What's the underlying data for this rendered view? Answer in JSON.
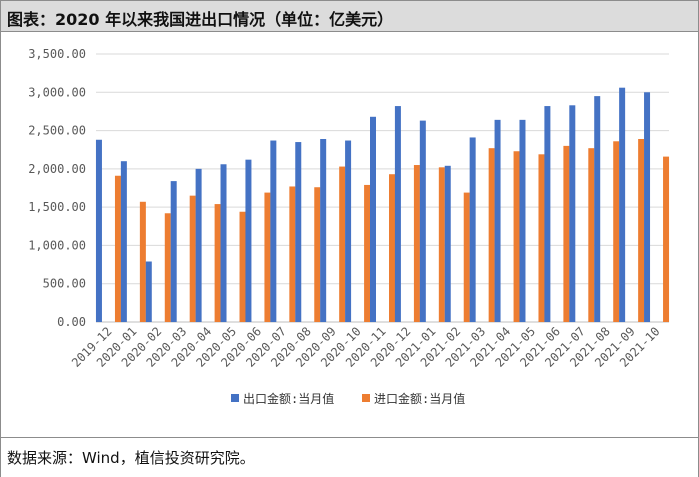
{
  "title": "图表：2020 年以来我国进出口情况（单位：亿美元）",
  "source": "数据来源：Wind，植信投资研究院。",
  "colors": {
    "export": "#4472c4",
    "import": "#ed7d31",
    "grid": "#d9d9d9",
    "axis_text": "#595959"
  },
  "chart_data": {
    "type": "bar",
    "categories": [
      "2019-12",
      "2020-01",
      "2020-02",
      "2020-03",
      "2020-04",
      "2020-05",
      "2020-06",
      "2020-07",
      "2020-08",
      "2020-09",
      "2020-10",
      "2020-11",
      "2020-12",
      "2021-01",
      "2021-02",
      "2021-03",
      "2021-04",
      "2021-05",
      "2021-06",
      "2021-07",
      "2021-08",
      "2021-09",
      "2021-10"
    ],
    "series": [
      {
        "name": "出口金额:当月值",
        "values": [
          2380,
          2100,
          790,
          1840,
          2000,
          2060,
          2120,
          2370,
          2350,
          2390,
          2370,
          2680,
          2820,
          2630,
          2040,
          2410,
          2640,
          2640,
          2820,
          2830,
          2950,
          3060,
          3000
        ]
      },
      {
        "name": "进口金额:当月值",
        "values": [
          1910,
          1570,
          1420,
          1650,
          1540,
          1440,
          1690,
          1770,
          1760,
          2030,
          1790,
          1930,
          2050,
          2020,
          1690,
          2270,
          2230,
          2190,
          2300,
          2270,
          2360,
          2390,
          2160
        ]
      }
    ],
    "yticks": [
      "0.00",
      "500.00",
      "1,000.00",
      "1,500.00",
      "2,000.00",
      "2,500.00",
      "3,000.00",
      "3,500.00"
    ],
    "ylim": [
      0,
      3500
    ],
    "grid": true,
    "legend_position": "bottom"
  }
}
